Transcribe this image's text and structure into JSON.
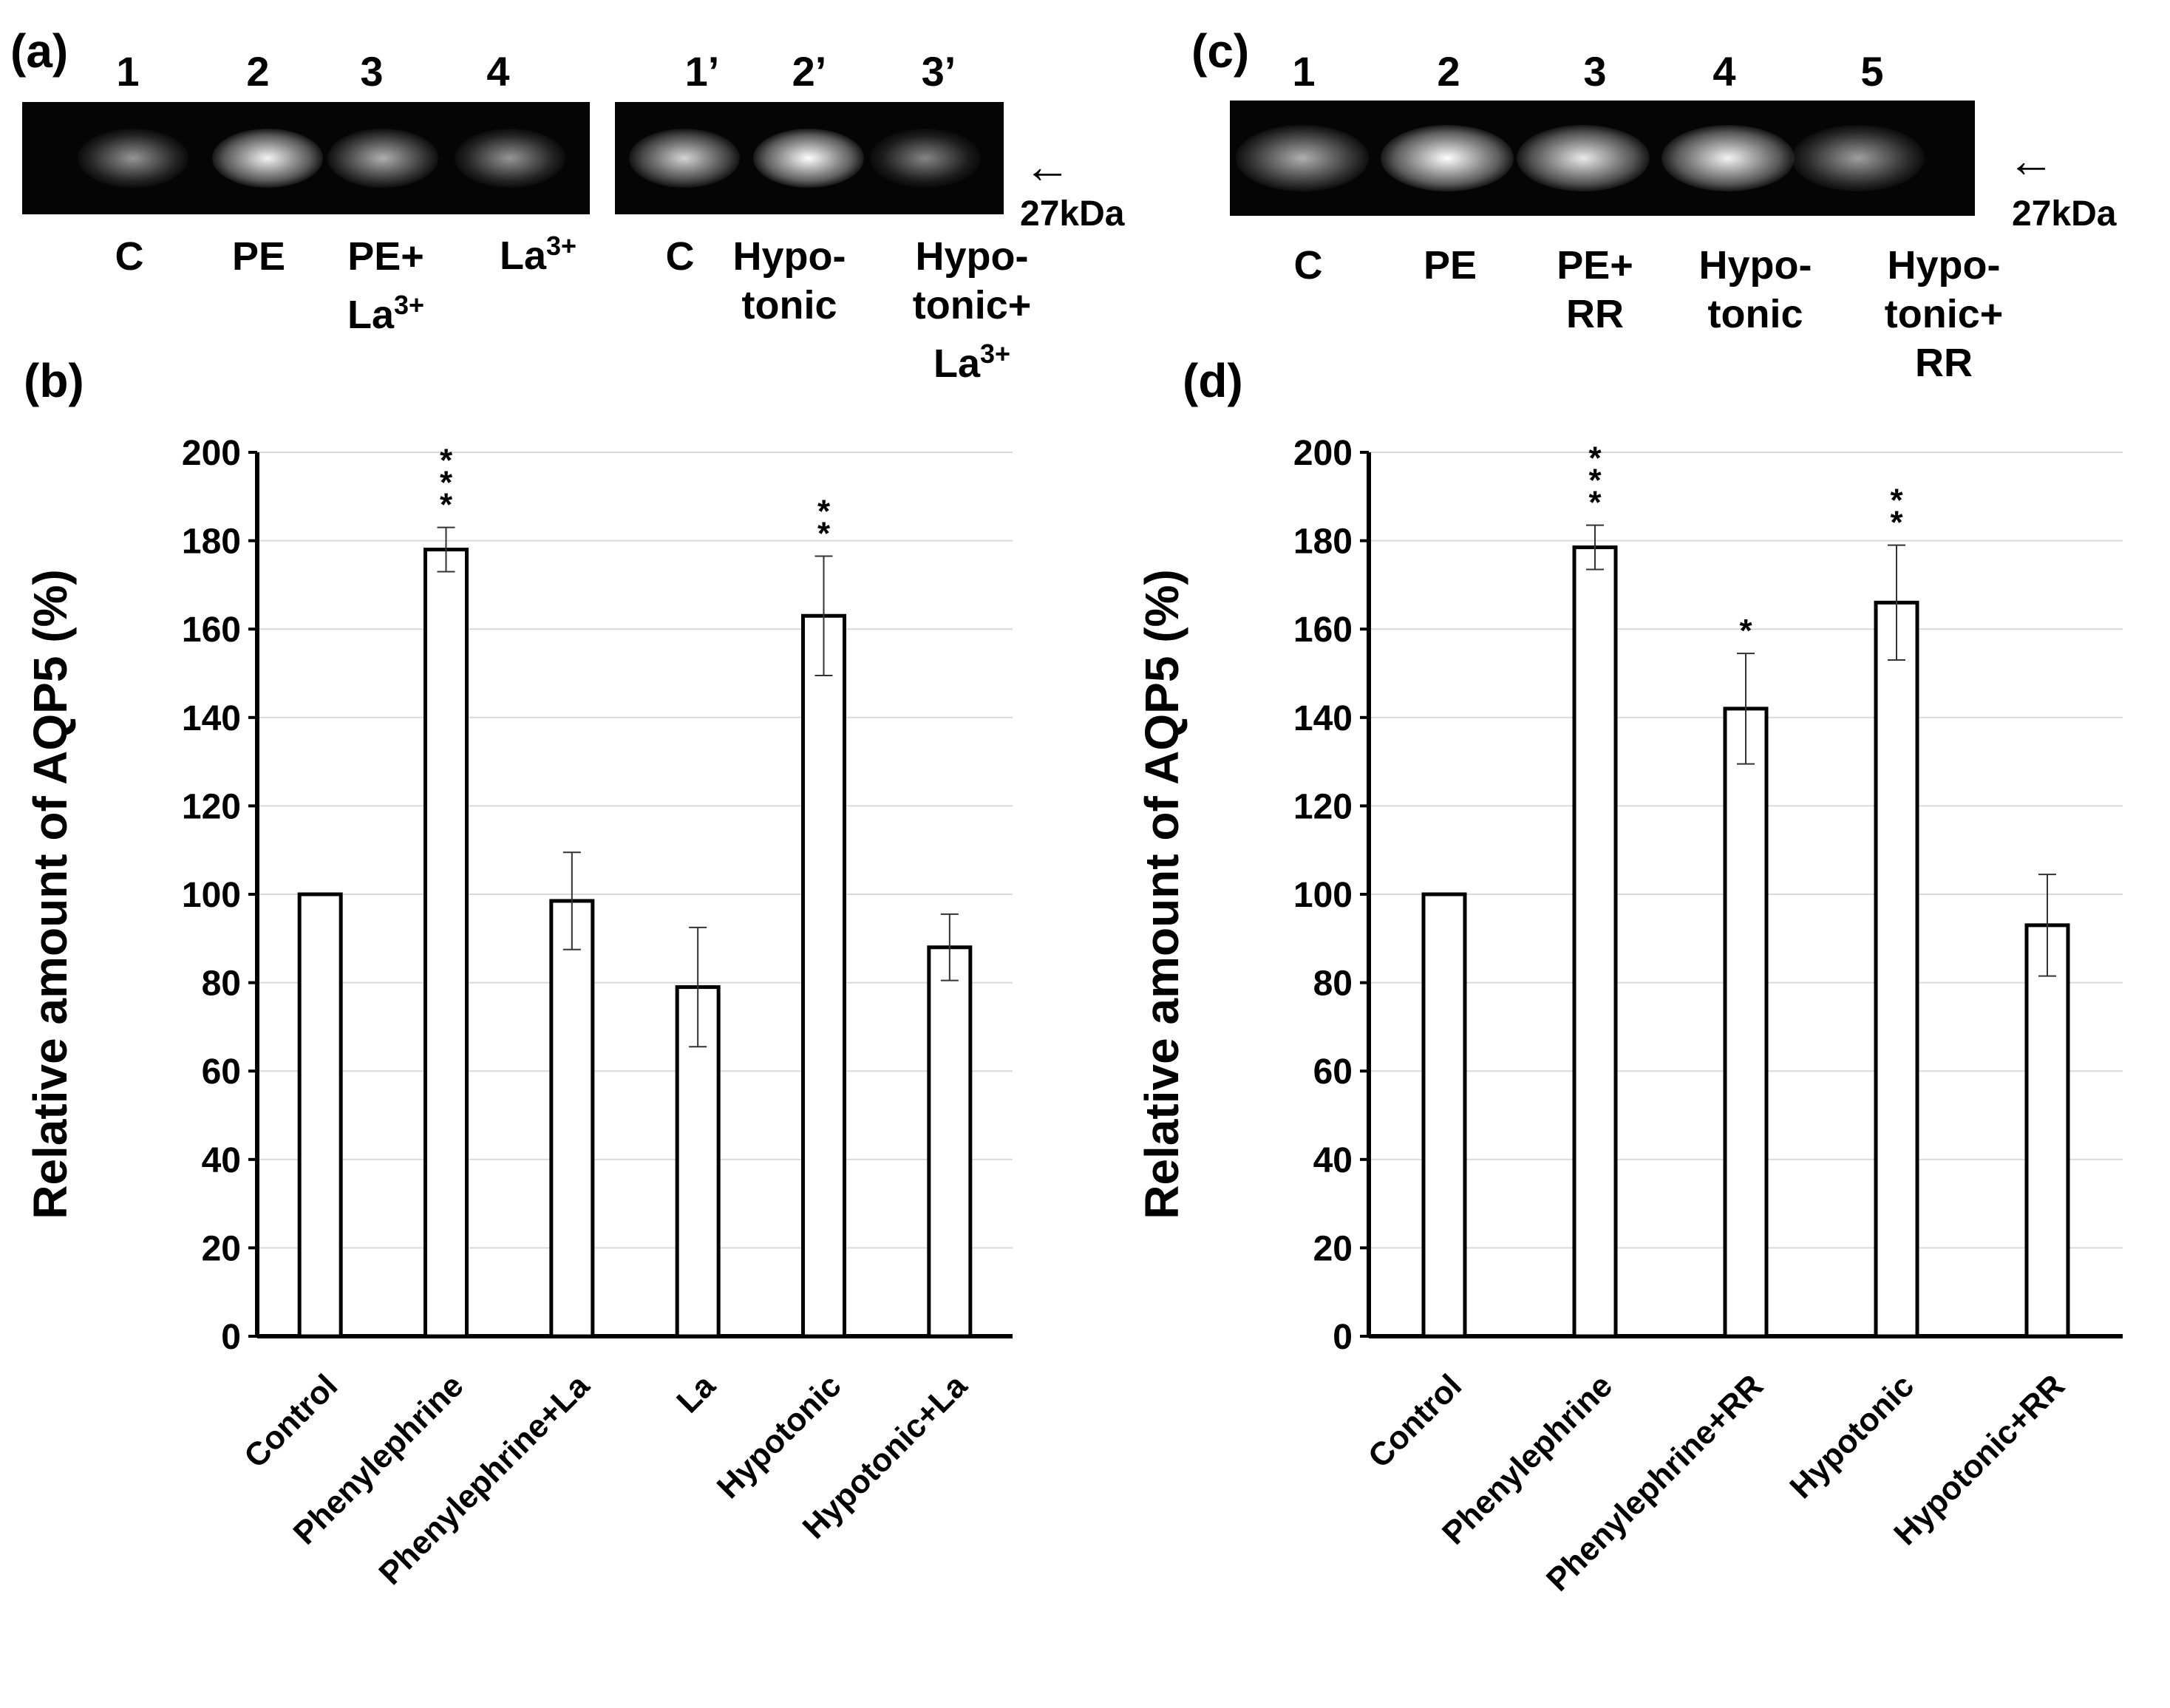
{
  "panel_a": {
    "label": "(a)",
    "gel1": {
      "lanes": [
        {
          "number": "1",
          "label": "C",
          "intensity": 0.45
        },
        {
          "number": "2",
          "label": "PE",
          "intensity": 0.95
        },
        {
          "number": "3",
          "label": "PE+",
          "label2": "La",
          "label2_sup": "3+",
          "intensity": 0.6
        },
        {
          "number": "4",
          "label": "La",
          "label_sup": "3+",
          "intensity": 0.45
        }
      ]
    },
    "gel2": {
      "lanes": [
        {
          "number": "1’",
          "label": "C",
          "intensity": 0.8
        },
        {
          "number": "2’",
          "label": "Hypo-",
          "label2": "tonic",
          "intensity": 1.0
        },
        {
          "number": "3’",
          "label": "Hypo-",
          "label2": "tonic+",
          "label3": "La",
          "label3_sup": "3+",
          "intensity": 0.35
        }
      ]
    },
    "marker": "27kDa",
    "arrow": "←"
  },
  "panel_c": {
    "label": "(c)",
    "lanes": [
      {
        "number": "1",
        "label": "C",
        "intensity": 0.6
      },
      {
        "number": "2",
        "label": "PE",
        "intensity": 1.0
      },
      {
        "number": "3",
        "label": "PE+",
        "label2": "RR",
        "intensity": 0.9
      },
      {
        "number": "4",
        "label": "Hypo-",
        "label2": "tonic",
        "intensity": 0.95
      },
      {
        "number": "5",
        "label": "Hypo-",
        "label2": "tonic+",
        "label3": "RR",
        "intensity": 0.5
      }
    ],
    "marker": "27kDa",
    "arrow": "←"
  },
  "chart_data": [
    {
      "panel_label": "(b)",
      "type": "bar",
      "ylabel": "Relative amount of AQP5 (%)",
      "xlabel": "",
      "ylim": [
        0,
        200
      ],
      "yticks": [
        "0",
        "20",
        "40",
        "60",
        "80",
        "100",
        "120",
        "140",
        "160",
        "180",
        "200"
      ],
      "grid": true,
      "categories": [
        "Control",
        "Phenylephrine",
        "Phenylephrine+La",
        "La",
        "Hypotonic",
        "Hypotonic+La"
      ],
      "values": [
        100,
        178,
        98.5,
        79,
        163,
        88
      ],
      "errors": [
        0,
        5,
        11,
        13.5,
        13.5,
        7.5
      ],
      "significance": [
        "",
        "***",
        "",
        "",
        "**",
        ""
      ]
    },
    {
      "panel_label": "(d)",
      "type": "bar",
      "ylabel": "Relative amount of AQP5 (%)",
      "xlabel": "",
      "ylim": [
        0,
        200
      ],
      "yticks": [
        "0",
        "20",
        "40",
        "60",
        "80",
        "100",
        "120",
        "140",
        "160",
        "180",
        "200"
      ],
      "grid": true,
      "categories": [
        "Control",
        "Phenylephrine",
        "Phenylephrine+RR",
        "Hypotonic",
        "Hypotonic+RR"
      ],
      "values": [
        100,
        178.5,
        142,
        166,
        93
      ],
      "errors": [
        0,
        5,
        12.5,
        13,
        11.5
      ],
      "significance": [
        "",
        "***",
        "*",
        "**",
        ""
      ]
    }
  ]
}
